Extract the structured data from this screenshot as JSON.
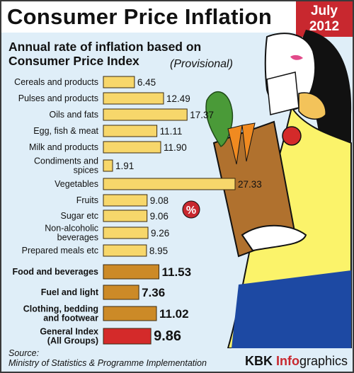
{
  "header": {
    "title": "Consumer Price Inflation",
    "date_line1": "July",
    "date_line2": "2012"
  },
  "subtitle": {
    "line1": "Annual rate of inflation based on",
    "line2": "Consumer Price Index",
    "note": "(Provisional)"
  },
  "badge": {
    "label": "%",
    "icon": "percent-icon"
  },
  "source": {
    "label": "Source:",
    "text": "Ministry of Statistics & Programme Implementation"
  },
  "brand": {
    "part1": "KBK ",
    "part2": "Info",
    "part3": "graphics"
  },
  "colors": {
    "item_bar": "#f7d76b",
    "group_bar": "#cc8a27",
    "general_bar": "#d42a2a",
    "accent": "#c8282f",
    "background": "#dfeef8"
  },
  "chart_data": {
    "type": "bar",
    "orientation": "horizontal",
    "title": "Consumer Price Inflation",
    "subtitle": "Annual rate of inflation based on Consumer Price Index (Provisional)",
    "categories": [
      "Cereals and products",
      "Pulses and products",
      "Oils and fats",
      "Egg, fish & meat",
      "Milk and products",
      "Condiments and spices",
      "Vegetables",
      "Fruits",
      "Sugar etc",
      "Non-alcoholic beverages",
      "Prepared meals etc",
      "Food and beverages",
      "Fuel and light",
      "Clothing, bedding and footwear",
      "General Index (All Groups)"
    ],
    "values": [
      6.45,
      12.49,
      17.37,
      11.11,
      11.9,
      1.91,
      27.33,
      9.08,
      9.06,
      9.26,
      8.95,
      11.53,
      7.36,
      11.02,
      9.86
    ],
    "value_labels": [
      "6.45",
      "12.49",
      "17.37",
      "11.11",
      "11.90",
      "1.91",
      "27.33",
      "9.08",
      "9.06",
      "9.26",
      "8.95",
      "11.53",
      "7.36",
      "11.02",
      "9.86"
    ],
    "label_lines": [
      [
        "Cereals and products"
      ],
      [
        "Pulses and products"
      ],
      [
        "Oils and fats"
      ],
      [
        "Egg, fish & meat"
      ],
      [
        "Milk and products"
      ],
      [
        "Condiments and",
        "spices"
      ],
      [
        "Vegetables"
      ],
      [
        "Fruits"
      ],
      [
        "Sugar etc"
      ],
      [
        "Non-alcoholic",
        "beverages"
      ],
      [
        "Prepared meals etc"
      ],
      [
        "Food and beverages"
      ],
      [
        "Fuel and light"
      ],
      [
        "Clothing, bedding",
        "and footwear"
      ],
      [
        "General Index",
        "(All Groups)"
      ]
    ],
    "kind": [
      "item",
      "item",
      "item",
      "item",
      "item",
      "item",
      "item",
      "item",
      "item",
      "item",
      "item",
      "group",
      "group",
      "group",
      "general"
    ],
    "xlim": [
      0,
      27.33
    ],
    "grid": false,
    "legend": "none"
  }
}
